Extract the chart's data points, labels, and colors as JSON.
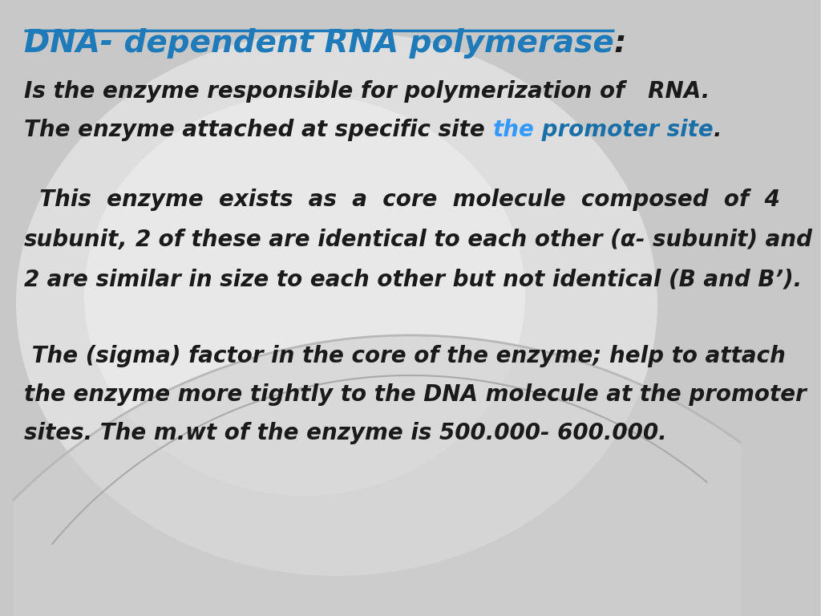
{
  "title_blue": "#1e7ab8",
  "text_black": "#1a1a1a",
  "promoter_light_blue": "#3399ff",
  "promoter_dark_blue": "#1a6fa8",
  "bg_base": "#c8c8c8",
  "title_text": "DNA- dependent RNA polymerase",
  "title_colon": ":",
  "line1": "Is the enzyme responsible for polymerization of   RNA.",
  "line2_pre": "The enzyme attached at specific site ",
  "line2_the": "the",
  "line2_promoter": " promoter site",
  "line2_dot": ".",
  "para2_line1_regular": "  This  enzyme  exists  as  a  core  molecule  composed  of ",
  "para2_line1_bold": " 4",
  "para2_line2_bold1": "subunit",
  "para2_line2_comma": ", ",
  "para2_line2_bold2": "2",
  "para2_line2_rest": " of these are identical to each other (α- subunit) and",
  "para2_line3_bold": "2",
  "para2_line3_rest": " are similar in size to each other but not identical (B and B’).",
  "para3_line1": " The (sigma) factor in the core of the enzyme; help to attach",
  "para3_line2": "the enzyme more tightly to the DNA molecule at the promoter",
  "para3_line3": "sites. The m.wt of the enzyme is 500.000- 600.000.",
  "figsize": [
    10.24,
    7.68
  ],
  "dpi": 100
}
